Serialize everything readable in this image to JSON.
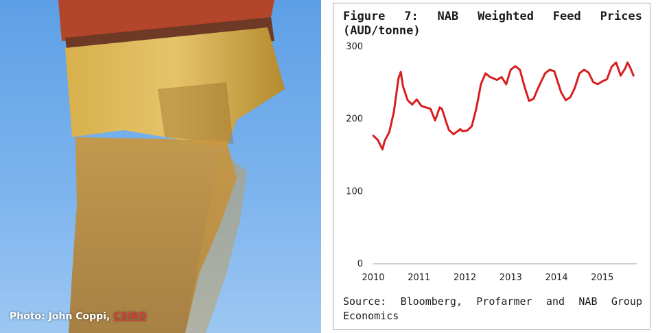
{
  "photo": {
    "credit_prefix": "Photo: John Coppi, ",
    "credit_link": "CSIRO"
  },
  "chart_data": {
    "type": "line",
    "title": "Figure 7: NAB Weighted Feed Prices (AUD/tonne)",
    "source": "Source: Bloomberg, Profarmer and NAB Group Economics",
    "xlabel": "",
    "ylabel": "",
    "x_ticks": [
      "2010",
      "2011",
      "2012",
      "2013",
      "2014",
      "2015"
    ],
    "y_ticks": [
      0,
      100,
      200,
      300
    ],
    "ylim": [
      0,
      300
    ],
    "xlim": [
      2010.0,
      2015.75
    ],
    "grid": false,
    "legend": "none",
    "series": [
      {
        "color": "#d81e1e",
        "x": [
          2010.0,
          2010.1,
          2010.2,
          2010.25,
          2010.35,
          2010.45,
          2010.55,
          2010.6,
          2010.65,
          2010.75,
          2010.85,
          2010.95,
          2011.05,
          2011.15,
          2011.25,
          2011.35,
          2011.45,
          2011.5,
          2011.6,
          2011.65,
          2011.75,
          2011.9,
          2011.95,
          2012.05,
          2012.15,
          2012.25,
          2012.35,
          2012.45,
          2012.55,
          2012.7,
          2012.8,
          2012.9,
          2013.0,
          2013.1,
          2013.2,
          2013.3,
          2013.4,
          2013.5,
          2013.6,
          2013.75,
          2013.85,
          2013.95,
          2014.1,
          2014.2,
          2014.3,
          2014.4,
          2014.5,
          2014.6,
          2014.7,
          2014.8,
          2014.9,
          2015.0,
          2015.1,
          2015.2,
          2015.3,
          2015.4,
          2015.5,
          2015.55,
          2015.6,
          2015.68
        ],
        "y": [
          177,
          171,
          158,
          170,
          182,
          210,
          256,
          265,
          245,
          226,
          220,
          227,
          218,
          216,
          214,
          198,
          216,
          214,
          194,
          185,
          179,
          186,
          183,
          184,
          190,
          215,
          248,
          263,
          258,
          254,
          258,
          248,
          268,
          273,
          268,
          245,
          225,
          228,
          243,
          263,
          268,
          266,
          237,
          226,
          230,
          243,
          263,
          268,
          264,
          251,
          248,
          252,
          255,
          272,
          278,
          260,
          270,
          278,
          272,
          260
        ]
      }
    ]
  }
}
